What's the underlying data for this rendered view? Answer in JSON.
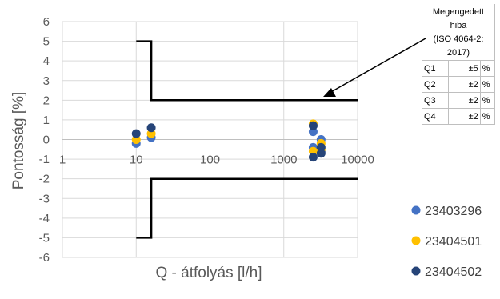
{
  "chart_data": {
    "type": "scatter",
    "xlabel": "Q - átfolyás [l/h]",
    "ylabel": "Pontosság [%]",
    "xscale": "log",
    "xlim": [
      1,
      10000
    ],
    "ylim": [
      -6,
      6
    ],
    "x_ticks": [
      "1",
      "10",
      "100",
      "1000",
      "10000"
    ],
    "y_ticks": [
      "-6",
      "-5",
      "-4",
      "-3",
      "-2",
      "-1",
      "0",
      "1",
      "2",
      "3",
      "4",
      "5",
      "6"
    ],
    "grid": true,
    "legend_position": "right",
    "series": [
      {
        "name": "23403296",
        "color": "#4472C4",
        "points": [
          [
            10,
            -0.2
          ],
          [
            16,
            0.1
          ],
          [
            2500,
            0.4
          ],
          [
            2500,
            -0.4
          ],
          [
            3200,
            0.0
          ],
          [
            3200,
            -0.6
          ]
        ]
      },
      {
        "name": "23404501",
        "color": "#FFC000",
        "points": [
          [
            10,
            0.0
          ],
          [
            16,
            0.3
          ],
          [
            2500,
            0.8
          ],
          [
            2500,
            -0.6
          ],
          [
            3200,
            -0.2
          ],
          [
            3200,
            -0.5
          ]
        ]
      },
      {
        "name": "23404502",
        "color": "#264478",
        "points": [
          [
            10,
            0.3
          ],
          [
            16,
            0.6
          ],
          [
            2500,
            0.7
          ],
          [
            2500,
            -0.9
          ],
          [
            3200,
            -0.4
          ],
          [
            3200,
            -0.7
          ]
        ]
      }
    ],
    "limit_lines": {
      "color": "#000000",
      "upper": [
        [
          10,
          5
        ],
        [
          16,
          5
        ],
        [
          16,
          2
        ],
        [
          10000,
          2
        ]
      ],
      "lower": [
        [
          10,
          -5
        ],
        [
          16,
          -5
        ],
        [
          16,
          -2
        ],
        [
          10000,
          -2
        ]
      ]
    }
  },
  "tolerance_table": {
    "title_lines": [
      "Megengedett",
      "hiba",
      "(ISO 4064-2:",
      "2017)"
    ],
    "rows": [
      {
        "q": "Q1",
        "value": "±5",
        "unit": "%"
      },
      {
        "q": "Q2",
        "value": "±2",
        "unit": "%"
      },
      {
        "q": "Q3",
        "value": "±2",
        "unit": "%"
      },
      {
        "q": "Q4",
        "value": "±2",
        "unit": "%"
      }
    ]
  }
}
